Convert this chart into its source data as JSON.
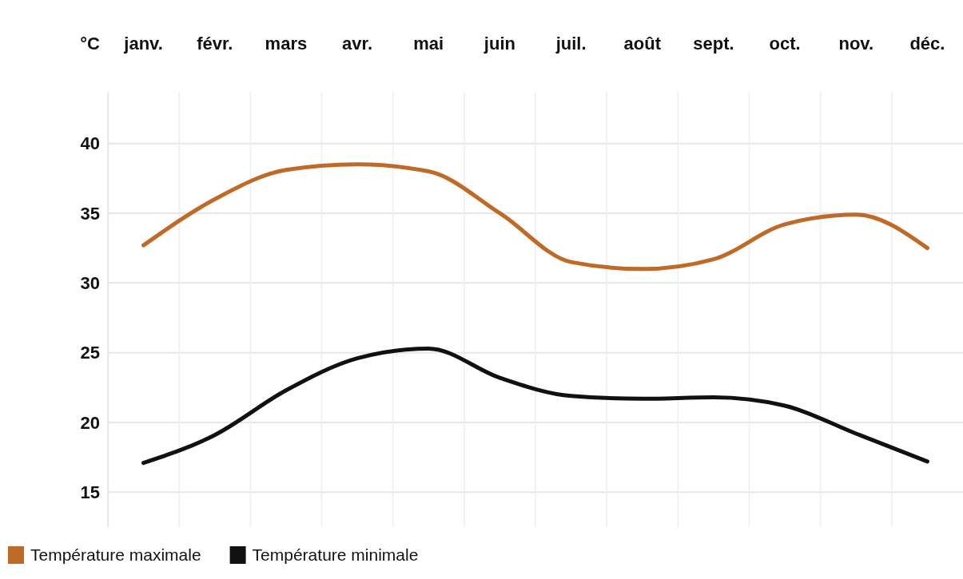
{
  "chart_data": {
    "type": "line",
    "ylabel": "°C",
    "categories": [
      "janv.",
      "févr.",
      "mars",
      "avr.",
      "mai",
      "juin",
      "juil.",
      "août",
      "sept.",
      "oct.",
      "nov.",
      "déc."
    ],
    "series": [
      {
        "name": "Température maximale",
        "color": "#c06a28",
        "values": [
          32.7,
          36.0,
          38.1,
          38.5,
          38.0,
          35.0,
          31.5,
          31.0,
          31.7,
          34.2,
          34.9,
          32.5
        ]
      },
      {
        "name": "Température minimale",
        "color": "#111111",
        "values": [
          17.1,
          19.1,
          22.3,
          24.6,
          25.3,
          23.2,
          21.9,
          21.7,
          21.8,
          21.2,
          19.2,
          17.2
        ]
      }
    ],
    "ylim": [
      12.5,
      43.7
    ],
    "yticks": [
      15,
      20,
      25,
      30,
      35,
      40
    ],
    "grid": true,
    "legend": "bottom left"
  }
}
